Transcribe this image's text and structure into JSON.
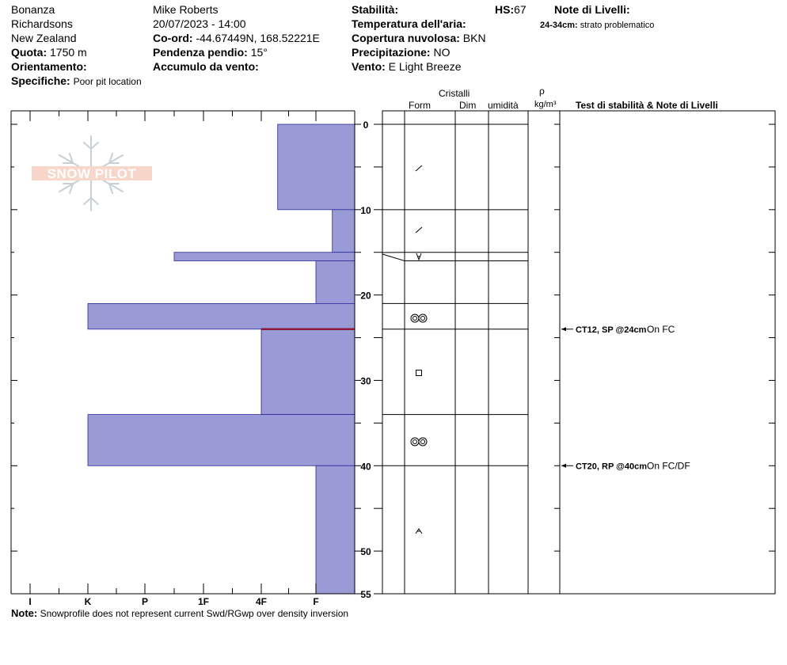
{
  "header": {
    "location": "Bonanza",
    "range": "Richardsons",
    "country": "New Zealand",
    "elevation_label": "Quota:",
    "elevation": "1750 m",
    "aspect_label": "Orientamento:",
    "aspect": "",
    "specifics_label": "Specifiche:",
    "specifics": "Poor pit location",
    "observer": "Mike Roberts",
    "datetime": "20/07/2023 - 14:00",
    "coord_label": "Co-ord:",
    "coord": "-44.67449N, 168.52221E",
    "slope_label": "Pendenza pendio:",
    "slope": "15°",
    "wind_loading_label": "Accumulo da vento:",
    "wind_loading": "",
    "stability_label": "Stabilità:",
    "stability": "",
    "air_temp_label": "Temperatura dell'aria:",
    "air_temp": "",
    "sky_label": "Copertura nuvolosa:",
    "sky": "BKN",
    "precip_label": "Precipitazione:",
    "precip": "NO",
    "wind_label": "Vento:",
    "wind": "E Light Breeze",
    "hs_label": "HS:",
    "hs": "67",
    "layer_notes_label": "Note di Livelli:",
    "layer_note_depth": "24-34cm:",
    "layer_note_text": "strato problematico"
  },
  "note": {
    "label": "Note:",
    "text": "Snowprofile does not represent current Swd/RGwp over density inversion"
  },
  "columns": {
    "crystals": "Cristalli",
    "form": "Form",
    "size": "Dim",
    "moisture": "umidità",
    "rho": "ρ",
    "density_unit": "kg/m³",
    "tests": "Test di stabilità & Note di Livelli"
  },
  "logo": {
    "text": "SNOW PILOT"
  },
  "colors": {
    "hardness_fill": "#9a9ad6",
    "hardness_stroke": "#2a2a9a",
    "weak_layer": "#8b1a3a"
  },
  "chart_data": {
    "type": "bar",
    "orientation": "horizontal",
    "title": "",
    "xlabel": "",
    "ylabel": "",
    "hardness_scale": [
      "I",
      "K",
      "P",
      "1F",
      "4F",
      "F"
    ],
    "y_ticks": [
      0,
      10,
      20,
      30,
      40,
      50,
      55
    ],
    "ylim": [
      0,
      55
    ],
    "layers": [
      {
        "top": 0,
        "bottom": 10,
        "hardness": 4.3,
        "form": "slash"
      },
      {
        "top": 10,
        "bottom": 15,
        "hardness": 5.3,
        "form": "slash"
      },
      {
        "top": 15,
        "bottom": 16,
        "hardness": 2.5,
        "form": "vfacet"
      },
      {
        "top": 16,
        "bottom": 21,
        "hardness": 5.0
      },
      {
        "top": 21,
        "bottom": 24,
        "hardness": 1.0,
        "form": "rounded"
      },
      {
        "top": 24,
        "bottom": 34,
        "hardness": 4.0,
        "form": "square"
      },
      {
        "top": 34,
        "bottom": 40,
        "hardness": 1.0,
        "form": "rounded"
      },
      {
        "top": 40,
        "bottom": 55,
        "hardness": 5.0,
        "form": "depthhoar"
      }
    ],
    "weak_layer_depth": 24,
    "tests": [
      {
        "depth": 24,
        "result": "CT12, SP @24cm",
        "note": "On FC"
      },
      {
        "depth": 40,
        "result": "CT20, RP @40cm",
        "note": "On FC/DF"
      }
    ]
  }
}
